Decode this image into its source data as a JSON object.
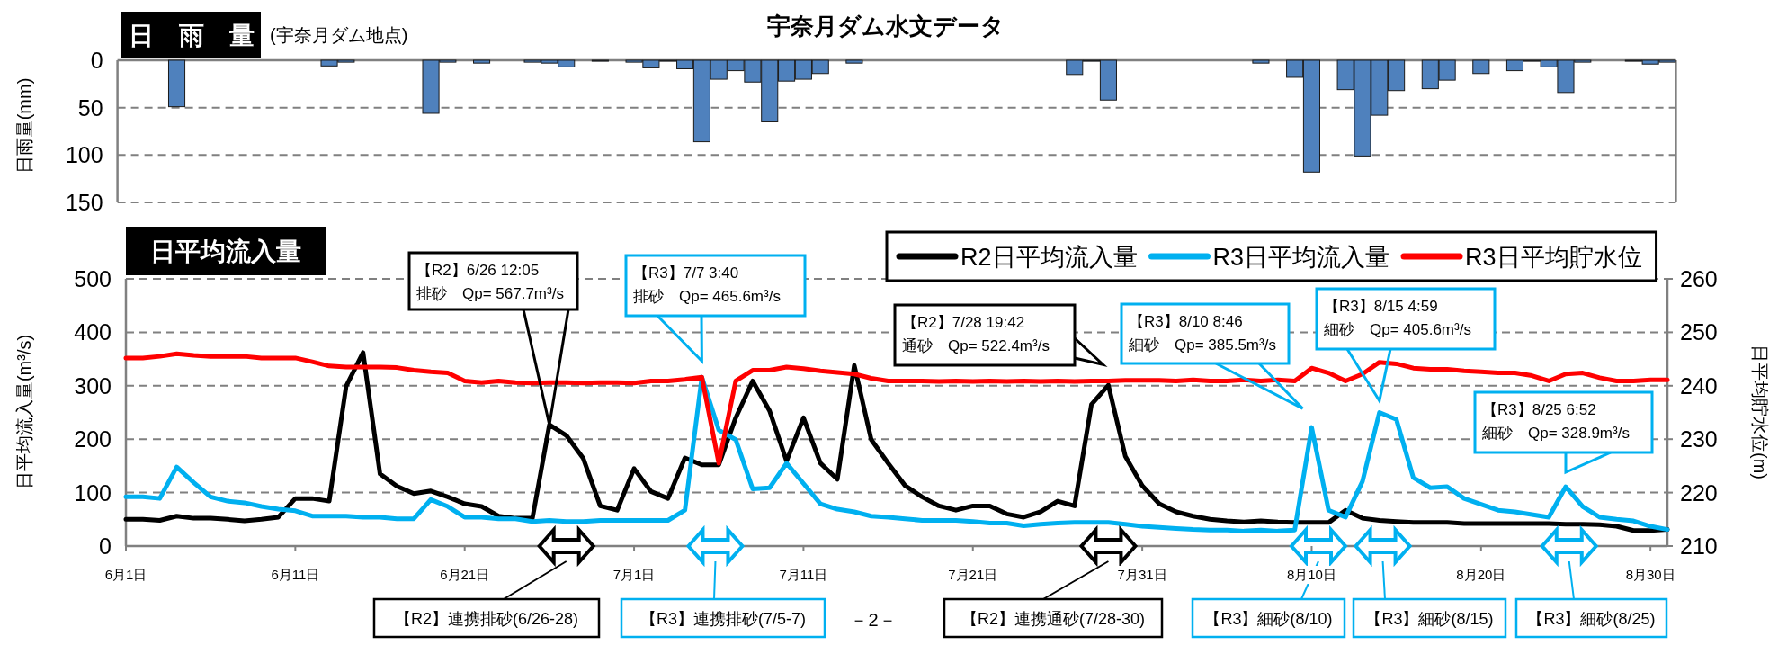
{
  "chart_data": [
    {
      "type": "bar",
      "title": "宇奈月ダム水文データ",
      "subtitle": "日　雨　量",
      "ylabel": "日雨量(mm)",
      "annotations": [
        "(宇奈月ダム地点)"
      ],
      "categories": [
        null,
        null,
        null,
        null,
        null,
        null,
        null,
        null,
        null,
        null,
        null,
        null,
        null,
        null,
        null,
        null,
        null,
        null,
        null,
        null,
        null,
        null,
        null,
        null,
        null,
        null,
        null,
        null,
        null,
        null,
        null,
        null,
        null,
        null,
        null,
        null,
        null,
        null,
        null,
        null,
        null,
        null,
        null,
        null,
        null,
        null,
        null,
        null,
        null,
        null,
        null,
        null,
        null,
        null,
        null,
        null,
        null,
        null,
        null,
        null,
        null,
        null,
        null,
        null,
        null,
        null,
        null,
        null,
        null,
        null,
        null,
        null,
        null,
        null,
        null,
        null,
        null,
        null,
        null,
        null,
        null,
        null,
        null,
        null,
        null,
        null,
        null,
        null,
        null,
        null,
        null,
        null
      ],
      "values": [
        0,
        0,
        0,
        49,
        0,
        0,
        0,
        0,
        0,
        0,
        0,
        0,
        6,
        2,
        0,
        0,
        0,
        0,
        56,
        2,
        0,
        3,
        0,
        0,
        2,
        3,
        7,
        0,
        1,
        0,
        2,
        8,
        1,
        9,
        86,
        20,
        11,
        23,
        65,
        22,
        20,
        14,
        0,
        3,
        0,
        0,
        0,
        0,
        0,
        0,
        0,
        0,
        0,
        0,
        0,
        0,
        15,
        1,
        42,
        0,
        0,
        0,
        0,
        0,
        0,
        0,
        0,
        3,
        0,
        18,
        118,
        0,
        31,
        101,
        58,
        32,
        0,
        30,
        21,
        0,
        14,
        0,
        11,
        1,
        7,
        34,
        2,
        0,
        0,
        1,
        4,
        2
      ],
      "color": "#4f81bd",
      "ylim": [
        150,
        0
      ],
      "yticks": [
        0,
        50,
        100,
        150
      ],
      "grid": "y"
    },
    {
      "type": "line",
      "subtitle": "日平均流入量",
      "ylabel": "日平均流入量(m³/s)",
      "y2label": "日平均貯水位(m)",
      "annotations": [
        "【R2】6/26 12:05\n排砂　Qp= 567.7m³/s",
        "【R3】7/7 3:40\n排砂　Qp= 465.6m³/s",
        "【R2】7/28 19:42\n通砂　Qp= 522.4m³/s",
        "【R3】8/10 8:46\n細砂　Qp= 385.5m³/s",
        "【R3】8/15 4:59\n細砂　Qp= 405.6m³/s",
        "【R3】8/25 6:52\n細砂　Qp= 328.9m³/s",
        "【R2】連携排砂(6/26-28)",
        "【R3】連携排砂(7/5-7)",
        "【R2】連携通砂(7/28-30)",
        "【R3】細砂(8/10)",
        "【R3】細砂(8/15)",
        "【R3】細砂(8/25)",
        "－2－"
      ],
      "categories": [
        "6月1日",
        null,
        null,
        null,
        null,
        null,
        null,
        null,
        null,
        null,
        "6月11日",
        null,
        null,
        null,
        null,
        null,
        null,
        null,
        null,
        null,
        "6月21日",
        null,
        null,
        null,
        null,
        null,
        null,
        null,
        null,
        null,
        "7月1日",
        null,
        null,
        null,
        null,
        null,
        null,
        null,
        null,
        null,
        "7月11日",
        null,
        null,
        null,
        null,
        null,
        null,
        null,
        null,
        null,
        "7月21日",
        null,
        null,
        null,
        null,
        null,
        null,
        null,
        null,
        null,
        "7月31日",
        null,
        null,
        null,
        null,
        null,
        null,
        null,
        null,
        null,
        "8月10日",
        null,
        null,
        null,
        null,
        null,
        null,
        null,
        null,
        null,
        "8月20日",
        null,
        null,
        null,
        null,
        null,
        null,
        null,
        null,
        null,
        "8月30日",
        null
      ],
      "series": [
        {
          "name": "R2日平均流入量",
          "color": "#000000",
          "values": [
            50,
            50,
            48,
            56,
            52,
            52,
            50,
            47,
            50,
            54,
            89,
            89,
            84,
            299,
            362,
            135,
            112,
            98,
            103,
            92,
            79,
            74,
            56,
            52,
            52,
            227,
            207,
            164,
            75,
            67,
            145,
            102,
            89,
            165,
            152,
            152,
            240,
            309,
            253,
            159,
            240,
            155,
            125,
            338,
            199,
            155,
            113,
            92,
            75,
            67,
            75,
            75,
            60,
            54,
            64,
            84,
            75,
            265,
            301,
            168,
            113,
            79,
            64,
            56,
            50,
            47,
            45,
            47,
            45,
            44,
            44,
            44,
            67,
            52,
            48,
            46,
            44,
            44,
            44,
            42,
            42,
            42,
            42,
            42,
            42,
            41,
            41,
            40,
            37,
            29,
            29,
            31
          ]
        },
        {
          "name": "R3日平均流入量",
          "color": "#00b0f0",
          "values": [
            92,
            92,
            89,
            148,
            119,
            92,
            84,
            81,
            74,
            69,
            66,
            56,
            56,
            56,
            54,
            54,
            51,
            51,
            87,
            74,
            54,
            54,
            51,
            51,
            46,
            48,
            46,
            46,
            48,
            48,
            48,
            48,
            48,
            67,
            316,
            217,
            199,
            107,
            109,
            155,
            117,
            79,
            69,
            64,
            56,
            54,
            51,
            48,
            48,
            48,
            46,
            43,
            43,
            38,
            41,
            43,
            44,
            44,
            44,
            41,
            37,
            35,
            33,
            31,
            30,
            30,
            28,
            30,
            28,
            30,
            222,
            67,
            54,
            121,
            250,
            237,
            128,
            109,
            111,
            89,
            78,
            67,
            64,
            59,
            54,
            111,
            74,
            54,
            50,
            47,
            37,
            31
          ]
        },
        {
          "name": "R3日平均貯水位",
          "color": "#ff0000",
          "axis": "y2",
          "values": [
            245.2,
            245.2,
            245.5,
            246.0,
            245.7,
            245.5,
            245.5,
            245.5,
            245.2,
            245.2,
            245.2,
            244.5,
            243.7,
            243.5,
            243.5,
            243.5,
            243.4,
            242.9,
            242.6,
            242.4,
            240.9,
            240.6,
            240.9,
            240.6,
            240.5,
            240.6,
            240.6,
            240.5,
            240.6,
            240.6,
            240.5,
            240.9,
            240.9,
            241.2,
            241.6,
            225.5,
            240.9,
            242.9,
            242.9,
            243.5,
            243.2,
            242.8,
            242.5,
            242.2,
            241.4,
            240.9,
            240.9,
            240.9,
            240.8,
            240.9,
            240.8,
            240.9,
            240.8,
            240.9,
            240.8,
            240.9,
            240.8,
            240.9,
            240.9,
            241.0,
            241.0,
            241.0,
            240.9,
            241.1,
            240.9,
            240.9,
            241.1,
            240.9,
            241.1,
            240.9,
            243.3,
            242.4,
            240.9,
            242.2,
            244.4,
            244.1,
            243.3,
            243.1,
            243.1,
            242.8,
            242.6,
            242.4,
            242.4,
            241.9,
            240.9,
            242.2,
            242.4,
            241.5,
            240.9,
            240.9,
            241.1,
            241.1
          ]
        }
      ],
      "ylim": [
        0,
        500
      ],
      "yticks": [
        0,
        100,
        200,
        300,
        400,
        500
      ],
      "y2lim": [
        210,
        260
      ],
      "y2ticks": [
        210,
        220,
        230,
        240,
        250,
        260
      ],
      "grid": "y",
      "legend": "top right",
      "line_style": "solid",
      "marker": "none"
    }
  ]
}
